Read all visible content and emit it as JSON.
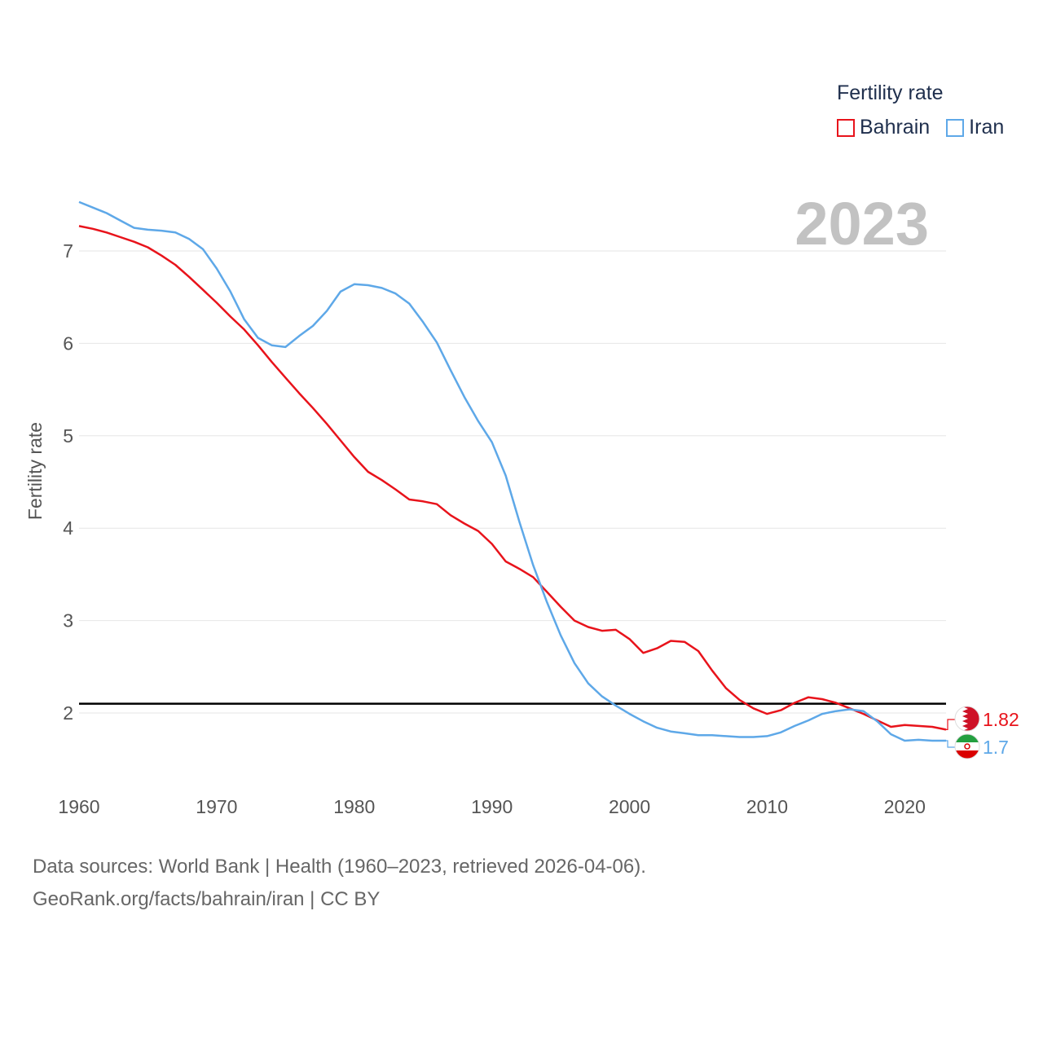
{
  "legend": {
    "title": "Fertility rate"
  },
  "footer": {
    "sources": "Data sources: World Bank | Health (1960–2023, retrieved 2026-04-06).",
    "credit": "GeoRank.org/facts/bahrain/iran | CC BY"
  },
  "colors": {
    "bahrain": "#e8131b",
    "iran": "#5ea8e8",
    "grid": "#e6e6e6",
    "axis_text": "#555555",
    "year_watermark": "#c2c2c2",
    "reference_line": "#000000"
  },
  "chart_data": {
    "type": "line",
    "title": "Fertility rate",
    "ylabel": "Fertility rate",
    "xlabel": "",
    "year_label": "2023",
    "reference_line": {
      "y": 2.1
    },
    "xlim": [
      1960,
      2023
    ],
    "ylim": [
      1.35,
      7.6
    ],
    "x_ticks": [
      1960,
      1970,
      1980,
      1990,
      2000,
      2010,
      2020
    ],
    "y_ticks": [
      2,
      3,
      4,
      5,
      6,
      7
    ],
    "x": [
      1960,
      1961,
      1962,
      1963,
      1964,
      1965,
      1966,
      1967,
      1968,
      1969,
      1970,
      1971,
      1972,
      1973,
      1974,
      1975,
      1976,
      1977,
      1978,
      1979,
      1980,
      1981,
      1982,
      1983,
      1984,
      1985,
      1986,
      1987,
      1988,
      1989,
      1990,
      1991,
      1992,
      1993,
      1994,
      1995,
      1996,
      1997,
      1998,
      1999,
      2000,
      2001,
      2002,
      2003,
      2004,
      2005,
      2006,
      2007,
      2008,
      2009,
      2010,
      2011,
      2012,
      2013,
      2014,
      2015,
      2016,
      2017,
      2018,
      2019,
      2020,
      2021,
      2022,
      2023
    ],
    "series": [
      {
        "name": "Bahrain",
        "end_label": "1.82",
        "values": [
          7.27,
          7.24,
          7.2,
          7.15,
          7.1,
          7.04,
          6.95,
          6.85,
          6.72,
          6.58,
          6.44,
          6.29,
          6.15,
          5.98,
          5.8,
          5.63,
          5.46,
          5.3,
          5.13,
          4.95,
          4.77,
          4.61,
          4.52,
          4.42,
          4.31,
          4.29,
          4.26,
          4.14,
          4.05,
          3.97,
          3.83,
          3.64,
          3.56,
          3.47,
          3.31,
          3.15,
          3.0,
          2.93,
          2.89,
          2.9,
          2.8,
          2.65,
          2.7,
          2.78,
          2.77,
          2.67,
          2.46,
          2.27,
          2.14,
          2.05,
          1.99,
          2.03,
          2.11,
          2.17,
          2.15,
          2.11,
          2.05,
          1.99,
          1.92,
          1.85,
          1.87,
          1.86,
          1.85,
          1.82
        ]
      },
      {
        "name": "Iran",
        "end_label": "1.7",
        "values": [
          7.53,
          7.47,
          7.41,
          7.33,
          7.25,
          7.23,
          7.22,
          7.2,
          7.13,
          7.02,
          6.81,
          6.56,
          6.26,
          6.06,
          5.98,
          5.96,
          6.08,
          6.19,
          6.35,
          6.56,
          6.64,
          6.63,
          6.6,
          6.54,
          6.43,
          6.23,
          6.01,
          5.71,
          5.42,
          5.16,
          4.93,
          4.57,
          4.07,
          3.6,
          3.2,
          2.84,
          2.54,
          2.32,
          2.18,
          2.08,
          1.99,
          1.91,
          1.84,
          1.8,
          1.78,
          1.76,
          1.76,
          1.75,
          1.74,
          1.74,
          1.75,
          1.79,
          1.86,
          1.92,
          1.99,
          2.02,
          2.04,
          2.02,
          1.91,
          1.77,
          1.7,
          1.71,
          1.7,
          1.7
        ]
      }
    ]
  }
}
